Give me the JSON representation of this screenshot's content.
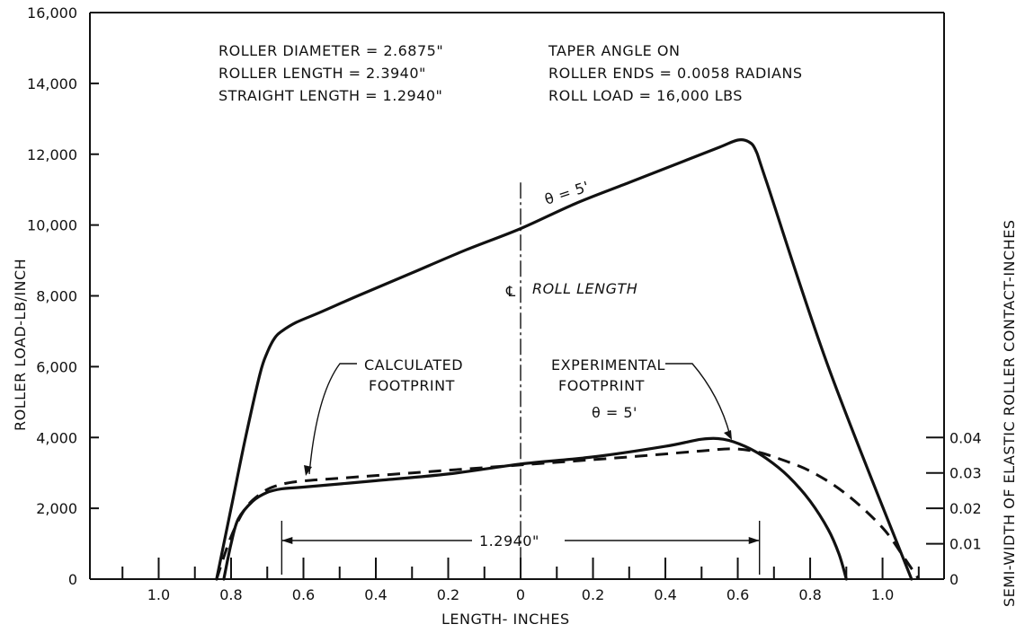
{
  "chart_data": {
    "type": "line",
    "xlabel": "LENGTH- INCHES",
    "ylabel": "ROLLER LOAD-LB/INCH",
    "y2label": "SEMI-WIDTH OF ELASTIC ROLLER CONTACT-INCHES",
    "xlim": [
      -1.19,
      1.17
    ],
    "ylim": [
      0,
      16000
    ],
    "y2lim": [
      0,
      0.16
    ],
    "x_tick_values": [
      -1.0,
      -0.8,
      -0.6,
      -0.4,
      -0.2,
      0,
      0.2,
      0.4,
      0.6,
      0.8,
      1.0
    ],
    "x_tick_labels": [
      "1.0",
      "0.8",
      "0.6",
      "0.4",
      "0.2",
      "0",
      "0.2",
      "0.4",
      "0.6",
      "0.8",
      "1.0"
    ],
    "x_minor_ticks": [
      -1.1,
      -0.9,
      -0.7,
      -0.5,
      -0.3,
      -0.1,
      0.1,
      0.3,
      0.5,
      0.7,
      0.9,
      1.1
    ],
    "y_tick_values": [
      0,
      2000,
      4000,
      6000,
      8000,
      10000,
      12000,
      14000,
      16000
    ],
    "y_tick_labels": [
      "0",
      "2,000",
      "4,000",
      "6,000",
      "8,000",
      "10,000",
      "12,000",
      "14,000",
      "16,000"
    ],
    "y2_tick_values": [
      0,
      0.01,
      0.02,
      0.03,
      0.04
    ],
    "y2_tick_labels": [
      "0",
      "0.01",
      "0.02",
      "0.03",
      "0.04"
    ],
    "series": [
      {
        "name": "θ = 5'",
        "axis": "left",
        "style": "solid",
        "x": [
          -0.84,
          -0.8,
          -0.76,
          -0.72,
          -0.7,
          -0.68,
          -0.66,
          -0.62,
          -0.55,
          -0.45,
          -0.3,
          -0.15,
          0,
          0.15,
          0.3,
          0.45,
          0.55,
          0.6,
          0.63,
          0.65,
          0.68,
          0.85,
          1.08
        ],
        "y": [
          0,
          2000,
          4000,
          5800,
          6400,
          6800,
          7000,
          7250,
          7550,
          8000,
          8650,
          9300,
          9900,
          10600,
          11200,
          11800,
          12200,
          12400,
          12350,
          12100,
          11200,
          6000,
          0
        ]
      },
      {
        "name": "θ = 5'",
        "axis": "right",
        "style": "solid",
        "x": [
          -0.82,
          -0.8,
          -0.78,
          -0.74,
          -0.7,
          -0.66,
          -0.6,
          -0.4,
          -0.2,
          0,
          0.2,
          0.4,
          0.5,
          0.56,
          0.62,
          0.68,
          0.74,
          0.8,
          0.85,
          0.88,
          0.9
        ],
        "y": [
          0,
          0.01,
          0.017,
          0.022,
          0.0245,
          0.0255,
          0.026,
          0.0278,
          0.0297,
          0.0325,
          0.0345,
          0.0375,
          0.0395,
          0.0395,
          0.0375,
          0.034,
          0.029,
          0.022,
          0.014,
          0.007,
          0
        ]
      },
      {
        "name": "",
        "axis": "right",
        "style": "dashed",
        "x": [
          -0.84,
          -0.8,
          -0.76,
          -0.72,
          -0.68,
          -0.62,
          -0.5,
          -0.3,
          -0.1,
          0.1,
          0.3,
          0.5,
          0.58,
          0.64,
          0.7,
          0.8,
          0.9,
          1.0,
          1.06,
          1.1
        ],
        "y": [
          0,
          0.012,
          0.02,
          0.024,
          0.0262,
          0.0275,
          0.0285,
          0.03,
          0.0315,
          0.033,
          0.0345,
          0.0362,
          0.0368,
          0.0362,
          0.0345,
          0.0305,
          0.024,
          0.0145,
          0.006,
          0
        ]
      }
    ],
    "annotations": {
      "specs_left": [
        "ROLLER DIAMETER = 2.6875\"",
        "ROLLER LENGTH = 2.3940\"",
        "STRAIGHT LENGTH = 1.2940\""
      ],
      "specs_right": [
        "TAPER ANGLE ON",
        "ROLLER ENDS = 0.0058 RADIANS",
        "ROLL LOAD = 16,000 LBS"
      ],
      "theta_upper": "θ = 5'",
      "theta_lower": "θ = 5'",
      "centerline": "ROLL LENGTH",
      "centerline_symbol": "℄",
      "calculated": [
        "CALCULATED",
        "FOOTPRINT"
      ],
      "experimental": [
        "EXPERIMENTAL",
        "FOOTPRINT"
      ],
      "straight_length": "1.2940\"",
      "straight_length_range": [
        -0.66,
        0.66
      ]
    }
  }
}
